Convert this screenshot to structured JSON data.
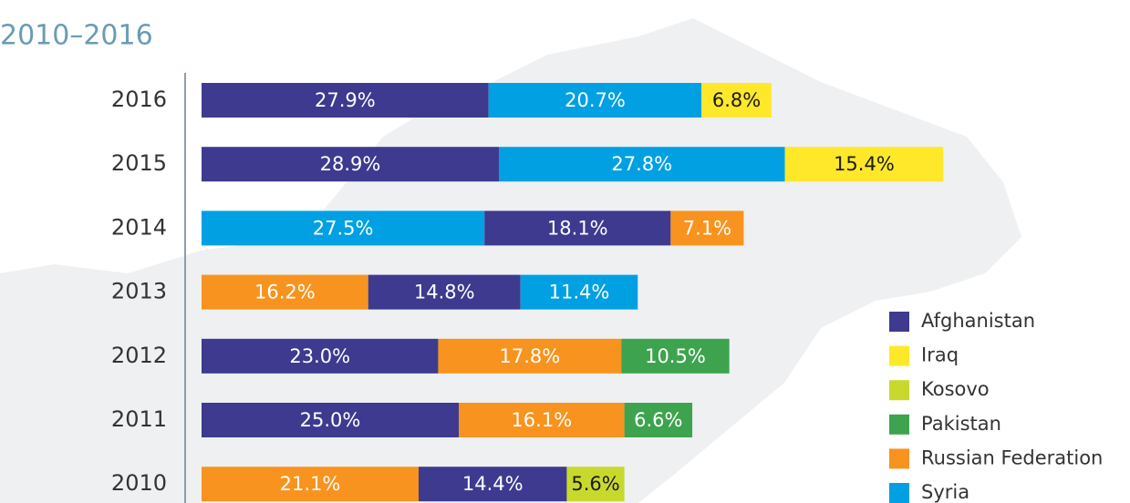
{
  "chart_data": {
    "type": "stacked-bar-horizontal",
    "subtitle": "2010–2016",
    "categories": [
      "2016",
      "2015",
      "2014",
      "2013",
      "2012",
      "2011",
      "2010"
    ],
    "xlim": [
      0,
      100
    ],
    "series": [
      {
        "name": "Afghanistan",
        "color": "#3e3a8f",
        "text_color": "#ffffff",
        "values": [
          27.9,
          28.9,
          18.1,
          14.8,
          23.0,
          25.0,
          14.4
        ],
        "value_labels": [
          "27.9%",
          "28.9%",
          "18.1%",
          "14.8%",
          "23.0%",
          "25.0%",
          "14.4%"
        ]
      },
      {
        "name": "Iraq",
        "color": "#ffe82a",
        "text_color": "#1a1a1a",
        "values": [
          6.8,
          15.4,
          null,
          null,
          null,
          null,
          null
        ],
        "value_labels": [
          "6.8%",
          "15.4%",
          null,
          null,
          null,
          null,
          null
        ]
      },
      {
        "name": "Kosovo",
        "color": "#c8d92e",
        "text_color": "#1a1a1a",
        "values": [
          null,
          null,
          null,
          null,
          null,
          null,
          5.6
        ],
        "value_labels": [
          null,
          null,
          null,
          null,
          null,
          null,
          "5.6%"
        ]
      },
      {
        "name": "Pakistan",
        "color": "#3ea34f",
        "text_color": "#ffffff",
        "values": [
          null,
          null,
          null,
          null,
          10.5,
          6.6,
          null
        ],
        "value_labels": [
          null,
          null,
          null,
          null,
          "10.5%",
          "6.6%",
          null
        ]
      },
      {
        "name": "Russian Federation",
        "color": "#f7931e",
        "text_color": "#ffffff",
        "values": [
          null,
          null,
          7.1,
          16.2,
          17.8,
          16.1,
          21.1
        ],
        "value_labels": [
          null,
          null,
          "7.1%",
          "16.2%",
          "17.8%",
          "16.1%",
          "21.1%"
        ]
      },
      {
        "name": "Syria",
        "color": "#00a0e3",
        "text_color": "#ffffff",
        "values": [
          20.7,
          27.8,
          27.5,
          11.4,
          null,
          null,
          null
        ],
        "value_labels": [
          "20.7%",
          "27.8%",
          "27.5%",
          "11.4%",
          null,
          null,
          null
        ]
      }
    ]
  }
}
